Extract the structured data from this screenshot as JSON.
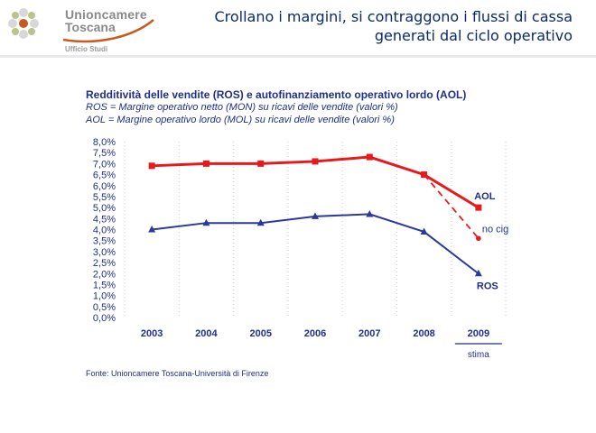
{
  "header": {
    "org_line1": "Unioncamere",
    "org_line2": "Toscana",
    "org_line3": "Ufficio Studi",
    "slide_title": "Crollano i margini, si contraggono i flussi di cassa generati dal ciclo operativo"
  },
  "source": "Fonte: Unioncamere Toscana-Università di Firenze",
  "colors": {
    "aol": "#e8191b",
    "ros": "#2b3a99",
    "text": "#1f2f8a",
    "grid": "#d0d0d0"
  },
  "chart_data": {
    "type": "line",
    "title": "Redditività delle vendite (ROS) e autofinanziamento operativo lordo (AOL)",
    "subtitle_lines": [
      "ROS = Margine operativo netto (MON) su ricavi delle vendite (valori %)",
      "AOL = Margine operativo lordo (MOL) su ricavi delle vendite (valori %)"
    ],
    "categories": [
      "2003",
      "2004",
      "2005",
      "2006",
      "2007",
      "2008",
      "2009"
    ],
    "ylim": [
      0,
      8
    ],
    "ytick_values": [
      0,
      0.5,
      1,
      1.5,
      2,
      2.5,
      3,
      3.5,
      4,
      4.5,
      5,
      5.5,
      6,
      6.5,
      7,
      7.5,
      8
    ],
    "ytick_labels": [
      "0,0%",
      "0,5%",
      "1,0%",
      "1,5%",
      "2,0%",
      "2,5%",
      "3,0%",
      "3,5%",
      "4,0%",
      "4,5%",
      "5,0%",
      "5,5%",
      "6,0%",
      "6,5%",
      "7,0%",
      "7,5%",
      "8,0%"
    ],
    "grid": true,
    "series": [
      {
        "name": "AOL",
        "values": [
          6.9,
          7.0,
          7.0,
          7.1,
          7.3,
          6.5,
          5.0
        ],
        "marker": "square",
        "color": "#e8191b"
      },
      {
        "name": "ROS",
        "values": [
          4.0,
          4.3,
          4.3,
          4.6,
          4.7,
          3.9,
          2.0
        ],
        "marker": "triangle",
        "color": "#2b3a99"
      },
      {
        "name": "no cig",
        "values": [
          null,
          null,
          null,
          null,
          null,
          6.5,
          3.6
        ],
        "marker": "circle",
        "color": "#e8191b",
        "dashed": true
      }
    ],
    "annotation": {
      "category": "2009",
      "text": "stima"
    }
  }
}
